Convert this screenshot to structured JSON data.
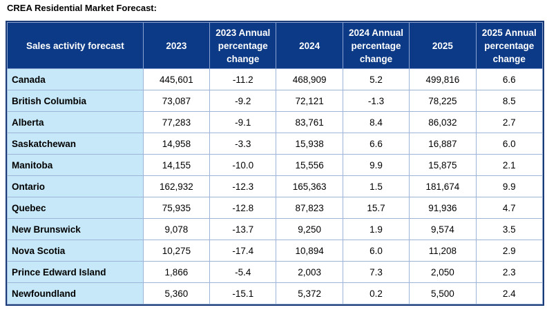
{
  "title": "CREA Residential Market Forecast:",
  "headers": [
    "Sales activity forecast",
    "2023",
    "2023 Annual percentage change",
    "2024",
    "2024 Annual percentage change",
    "2025",
    "2025 Annual percentage change"
  ],
  "rows": [
    [
      "Canada",
      "445,601",
      "-11.2",
      "468,909",
      "5.2",
      "499,816",
      "6.6"
    ],
    [
      "British Columbia",
      "73,087",
      "-9.2",
      "72,121",
      "-1.3",
      "78,225",
      "8.5"
    ],
    [
      "Alberta",
      "77,283",
      "-9.1",
      "83,761",
      "8.4",
      "86,032",
      "2.7"
    ],
    [
      "Saskatchewan",
      "14,958",
      "-3.3",
      "15,938",
      "6.6",
      "16,887",
      "6.0"
    ],
    [
      "Manitoba",
      "14,155",
      "-10.0",
      "15,556",
      "9.9",
      "15,875",
      "2.1"
    ],
    [
      "Ontario",
      "162,932",
      "-12.3",
      "165,363",
      "1.5",
      "181,674",
      "9.9"
    ],
    [
      "Quebec",
      "75,935",
      "-12.8",
      "87,823",
      "15.7",
      "91,936",
      "4.7"
    ],
    [
      "New Brunswick",
      "9,078",
      "-13.7",
      "9,250",
      "1.9",
      "9,574",
      "3.5"
    ],
    [
      "Nova Scotia",
      "10,275",
      "-17.4",
      "10,894",
      "6.0",
      "11,208",
      "2.9"
    ],
    [
      "Prince Edward Island",
      "1,866",
      "-5.4",
      "2,003",
      "7.3",
      "2,050",
      "2.3"
    ],
    [
      "Newfoundland",
      "5,360",
      "-15.1",
      "5,372",
      "0.2",
      "5,500",
      "2.4"
    ]
  ]
}
